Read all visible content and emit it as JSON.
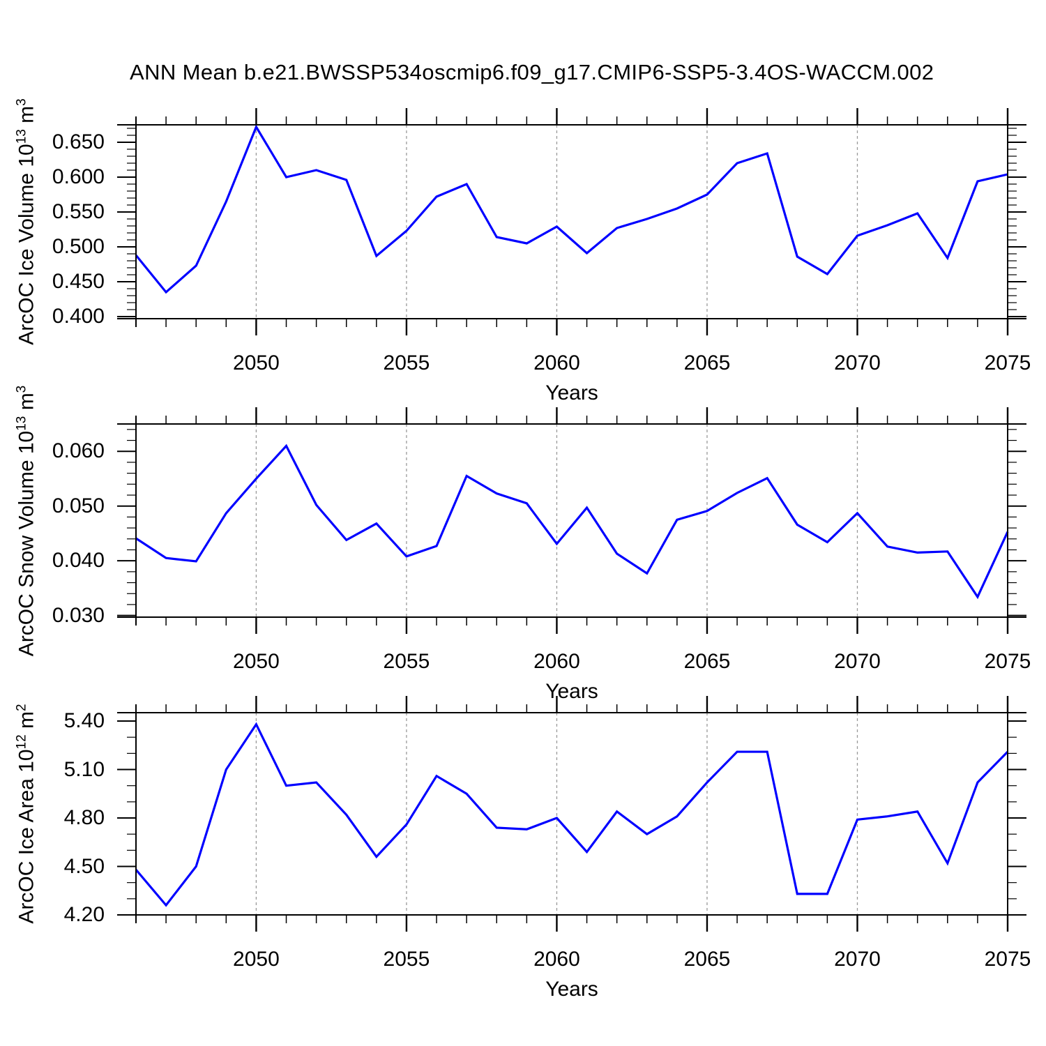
{
  "title": "ANN Mean b.e21.BWSSP534oscmip6.f09_g17.CMIP6-SSP5-3.4OS-WACCM.002",
  "figure": {
    "xlabel": "Years",
    "line_color": "#0000ff",
    "grid_color": "#999999",
    "axis_color": "#000000"
  },
  "chart_data": [
    {
      "type": "line",
      "name": "arcoc-ice-volume",
      "ylabel_base": "ArcOC Ice Volume 10",
      "ylabel_exp": "13",
      "ylabel_unit": " m",
      "ylabel_unit_exp": "3",
      "xlabel": "Years",
      "legend": "none",
      "grid": "dashed-vertical-at-major-x",
      "xlim": [
        2046,
        2075
      ],
      "ylim": [
        0.397,
        0.675
      ],
      "x": [
        2046,
        2047,
        2048,
        2049,
        2050,
        2051,
        2052,
        2053,
        2054,
        2055,
        2056,
        2057,
        2058,
        2059,
        2060,
        2061,
        2062,
        2063,
        2064,
        2065,
        2066,
        2067,
        2068,
        2069,
        2070,
        2071,
        2072,
        2073,
        2074,
        2075
      ],
      "values": [
        0.488,
        0.435,
        0.473,
        0.565,
        0.672,
        0.6,
        0.61,
        0.596,
        0.487,
        0.523,
        0.572,
        0.59,
        0.514,
        0.505,
        0.529,
        0.491,
        0.527,
        0.54,
        0.555,
        0.575,
        0.62,
        0.634,
        0.486,
        0.461,
        0.516,
        0.531,
        0.548,
        0.484,
        0.594,
        0.604
      ],
      "yticks_major": [
        0.4,
        0.45,
        0.5,
        0.55,
        0.6,
        0.65
      ],
      "ytick_labels": [
        "0.400",
        "0.450",
        "0.500",
        "0.550",
        "0.600",
        "0.650"
      ],
      "ytick_minor_step": 0.01,
      "xticks_major": [
        2050,
        2055,
        2060,
        2065,
        2070,
        2075
      ],
      "xtick_labels": [
        "2050",
        "2055",
        "2060",
        "2065",
        "2070",
        "2075"
      ],
      "gridlines_x": [
        2050,
        2055,
        2060,
        2065,
        2070
      ]
    },
    {
      "type": "line",
      "name": "arcoc-snow-volume",
      "ylabel_base": "ArcOC Snow Volume 10",
      "ylabel_exp": "13",
      "ylabel_unit": " m",
      "ylabel_unit_exp": "3",
      "xlabel": "Years",
      "legend": "none",
      "grid": "dashed-vertical-at-major-x",
      "xlim": [
        2046,
        2075
      ],
      "ylim": [
        0.0297,
        0.065
      ],
      "x": [
        2046,
        2047,
        2048,
        2049,
        2050,
        2051,
        2052,
        2053,
        2054,
        2055,
        2056,
        2057,
        2058,
        2059,
        2060,
        2061,
        2062,
        2063,
        2064,
        2065,
        2066,
        2067,
        2068,
        2069,
        2070,
        2071,
        2072,
        2073,
        2074,
        2075
      ],
      "values": [
        0.0441,
        0.0405,
        0.0399,
        0.0487,
        0.055,
        0.061,
        0.0502,
        0.0438,
        0.0468,
        0.0408,
        0.0427,
        0.0555,
        0.0523,
        0.0505,
        0.0431,
        0.0497,
        0.0413,
        0.0377,
        0.0475,
        0.0491,
        0.0524,
        0.0551,
        0.0466,
        0.0434,
        0.0487,
        0.0426,
        0.0415,
        0.0417,
        0.0334,
        0.0453
      ],
      "yticks_major": [
        0.03,
        0.04,
        0.05,
        0.06
      ],
      "ytick_labels": [
        "0.030",
        "0.040",
        "0.050",
        "0.060"
      ],
      "ytick_minor_step": 0.002,
      "xticks_major": [
        2050,
        2055,
        2060,
        2065,
        2070,
        2075
      ],
      "xtick_labels": [
        "2050",
        "2055",
        "2060",
        "2065",
        "2070",
        "2075"
      ],
      "gridlines_x": [
        2050,
        2055,
        2060,
        2065,
        2070
      ]
    },
    {
      "type": "line",
      "name": "arcoc-ice-area",
      "ylabel_base": "ArcOC Ice Area 10",
      "ylabel_exp": "12",
      "ylabel_unit": " m",
      "ylabel_unit_exp": "2",
      "xlabel": "Years",
      "legend": "none",
      "grid": "dashed-vertical-at-major-x",
      "xlim": [
        2046,
        2075
      ],
      "ylim": [
        4.2,
        5.452
      ],
      "x": [
        2046,
        2047,
        2048,
        2049,
        2050,
        2051,
        2052,
        2053,
        2054,
        2055,
        2056,
        2057,
        2058,
        2059,
        2060,
        2061,
        2062,
        2063,
        2064,
        2065,
        2066,
        2067,
        2068,
        2069,
        2070,
        2071,
        2072,
        2073,
        2074,
        2075
      ],
      "values": [
        4.48,
        4.26,
        4.5,
        5.1,
        5.38,
        5.0,
        5.02,
        4.82,
        4.56,
        4.76,
        5.06,
        4.95,
        4.74,
        4.73,
        4.8,
        4.59,
        4.84,
        4.7,
        4.81,
        5.02,
        5.21,
        5.21,
        4.33,
        4.33,
        4.79,
        4.81,
        4.84,
        4.52,
        5.02,
        5.21
      ],
      "yticks_major": [
        4.2,
        4.5,
        4.8,
        5.1,
        5.4
      ],
      "ytick_labels": [
        "4.20",
        "4.50",
        "4.80",
        "5.10",
        "5.40"
      ],
      "ytick_minor_step": 0.1,
      "xticks_major": [
        2050,
        2055,
        2060,
        2065,
        2070,
        2075
      ],
      "xtick_labels": [
        "2050",
        "2055",
        "2060",
        "2065",
        "2070",
        "2075"
      ],
      "gridlines_x": [
        2050,
        2055,
        2060,
        2065,
        2070
      ]
    }
  ]
}
